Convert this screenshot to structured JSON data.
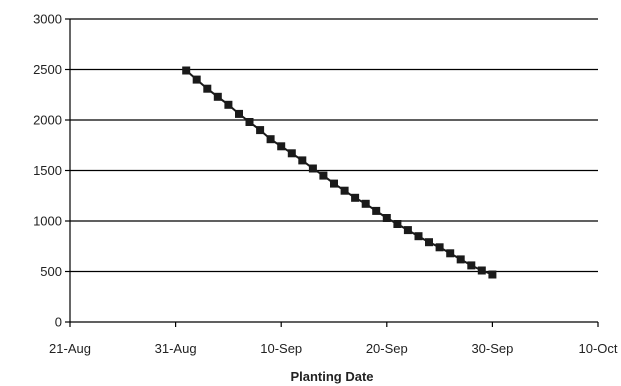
{
  "chart_data": {
    "type": "scatter",
    "title": "",
    "xlabel": "Planting Date",
    "ylabel": "",
    "x_tick_labels": [
      "21-Aug",
      "31-Aug",
      "10-Sep",
      "20-Sep",
      "30-Sep",
      "10-Oct"
    ],
    "y_tick_labels": [
      "0",
      "500",
      "1000",
      "1500",
      "2000",
      "2500",
      "3000"
    ],
    "xlim": [
      "2023-08-21",
      "2023-10-10"
    ],
    "ylim": [
      0,
      3000
    ],
    "y_ticks": [
      0,
      500,
      1000,
      1500,
      2000,
      2500,
      3000
    ],
    "grid": {
      "horizontal": true,
      "vertical": false
    },
    "legend": "none",
    "series": [
      {
        "marker": "square",
        "color": "#1a1a1a",
        "line_color": "#1a1a1a",
        "x": [
          "2023-09-01",
          "2023-09-02",
          "2023-09-03",
          "2023-09-04",
          "2023-09-05",
          "2023-09-06",
          "2023-09-07",
          "2023-09-08",
          "2023-09-09",
          "2023-09-10",
          "2023-09-11",
          "2023-09-12",
          "2023-09-13",
          "2023-09-14",
          "2023-09-15",
          "2023-09-16",
          "2023-09-17",
          "2023-09-18",
          "2023-09-19",
          "2023-09-20",
          "2023-09-21",
          "2023-09-22",
          "2023-09-23",
          "2023-09-24",
          "2023-09-25",
          "2023-09-26",
          "2023-09-27",
          "2023-09-28",
          "2023-09-29",
          "2023-09-30"
        ],
        "y": [
          2490,
          2400,
          2310,
          2230,
          2150,
          2060,
          1980,
          1900,
          1810,
          1740,
          1670,
          1600,
          1520,
          1450,
          1370,
          1300,
          1230,
          1170,
          1100,
          1030,
          970,
          910,
          850,
          790,
          740,
          680,
          620,
          560,
          510,
          470
        ]
      }
    ]
  }
}
